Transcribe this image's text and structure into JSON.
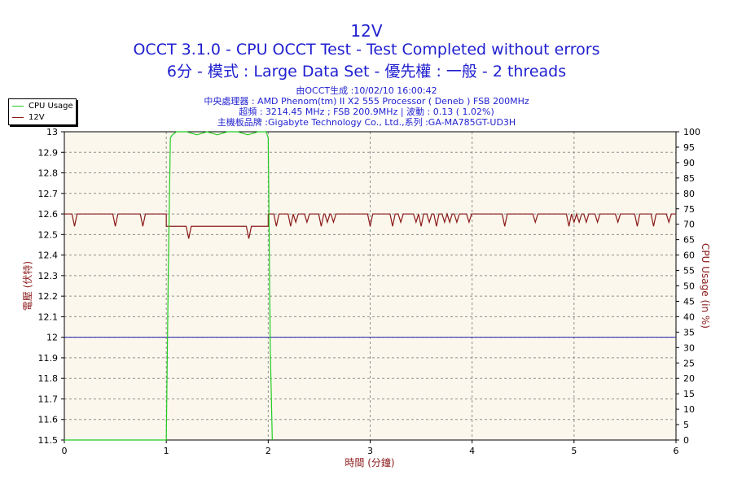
{
  "header": {
    "title": "12V",
    "subtitle": "OCCT 3.1.0 - CPU OCCT Test - Test Completed without errors",
    "subtitle2": "6分 - 模式 : Large Data Set - 優先權 : 一般 - 2 threads",
    "info": [
      "由OCCT生成 :10/02/10 16:00:42",
      "中央處理器 : AMD Phenom(tm) II X2 555 Processor ( Deneb ) FSB 200MHz",
      "超頻 : 3214.45 MHz ; FSB 200.9MHz | 波動 : 0.13 ( 1.02%)",
      "主機板品牌 :Gigabyte Technology Co., Ltd.,系列 :GA-MA785GT-UD3H"
    ]
  },
  "legend": {
    "items": [
      {
        "label": "CPU Usage",
        "color": "#22cc22"
      },
      {
        "label": "12V",
        "color": "#8b1a1a"
      }
    ]
  },
  "colors": {
    "plot_bg": "#fbf7ec",
    "grid": "#909090",
    "voltage": "#8b1a1a",
    "cpu": "#22cc22",
    "reference": "#2222aa",
    "axis_text": "#000000",
    "axis_title_left": "#8b1a1a",
    "axis_title_right": "#8b1a1a",
    "axis_title_bottom": "#8b1a1a"
  },
  "chart_data": {
    "type": "line",
    "xlabel": "時間 (分鐘)",
    "ylabel": "電壓 (伏特)",
    "y2label": "CPU Usage (in %)",
    "xlim": [
      0,
      6
    ],
    "ylim": [
      11.5,
      13
    ],
    "y2lim": [
      0,
      100
    ],
    "x_ticks": [
      0,
      1,
      2,
      3,
      4,
      5,
      6
    ],
    "y_ticks": [
      "13",
      "12.9",
      "12.8",
      "12.7",
      "12.6",
      "12.5",
      "12.4",
      "12.3",
      "12.2",
      "12.1",
      "12",
      "11.9",
      "11.8",
      "11.7",
      "11.6",
      "11.5"
    ],
    "y2_ticks": [
      100,
      95,
      90,
      85,
      80,
      75,
      70,
      65,
      60,
      55,
      50,
      45,
      40,
      35,
      30,
      25,
      20,
      15,
      10,
      5,
      0
    ],
    "grid": true,
    "legend_position": "top-left",
    "reference_line": 12.0,
    "series": [
      {
        "name": "12V",
        "axis": "left",
        "baseline_segments": [
          [
            0.0,
            1.0,
            12.6
          ],
          [
            1.0,
            2.0,
            12.54
          ],
          [
            2.0,
            6.0,
            12.6
          ]
        ],
        "dips": [
          [
            0.1,
            12.54
          ],
          [
            0.5,
            12.54
          ],
          [
            0.77,
            12.54
          ],
          [
            1.22,
            12.48
          ],
          [
            1.81,
            12.48
          ],
          [
            2.08,
            12.54
          ],
          [
            2.22,
            12.54
          ],
          [
            2.27,
            12.56
          ],
          [
            2.38,
            12.56
          ],
          [
            2.52,
            12.54
          ],
          [
            2.58,
            12.56
          ],
          [
            2.64,
            12.56
          ],
          [
            3.0,
            12.54
          ],
          [
            3.22,
            12.54
          ],
          [
            3.3,
            12.56
          ],
          [
            3.45,
            12.56
          ],
          [
            3.5,
            12.54
          ],
          [
            3.58,
            12.56
          ],
          [
            3.65,
            12.54
          ],
          [
            3.73,
            12.56
          ],
          [
            3.78,
            12.56
          ],
          [
            3.85,
            12.56
          ],
          [
            3.97,
            12.56
          ],
          [
            4.32,
            12.54
          ],
          [
            4.62,
            12.56
          ],
          [
            4.95,
            12.54
          ],
          [
            5.0,
            12.56
          ],
          [
            5.05,
            12.56
          ],
          [
            5.12,
            12.56
          ],
          [
            5.23,
            12.56
          ],
          [
            5.43,
            12.56
          ],
          [
            5.62,
            12.54
          ],
          [
            5.78,
            12.54
          ],
          [
            5.93,
            12.56
          ]
        ]
      },
      {
        "name": "CPU Usage",
        "axis": "right",
        "x": [
          0,
          1.0,
          1.02,
          1.04,
          1.06,
          1.1,
          1.2,
          1.3,
          1.4,
          1.5,
          1.6,
          1.7,
          1.8,
          1.9,
          1.98,
          2.0,
          2.02,
          2.04
        ],
        "values": [
          0,
          0,
          55,
          98,
          99,
          100,
          100,
          99,
          100,
          99,
          100,
          100,
          99,
          100,
          100,
          98,
          30,
          0
        ]
      }
    ]
  }
}
